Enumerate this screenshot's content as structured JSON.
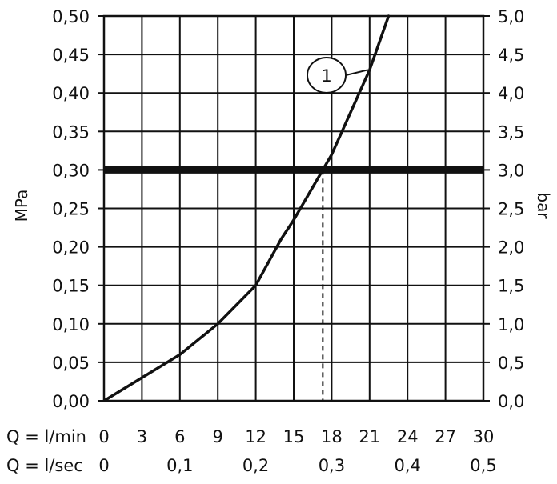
{
  "chart_data": {
    "type": "line",
    "title": "",
    "y_left": {
      "label": "MPa",
      "ticks": [
        "0,00",
        "0,05",
        "0,10",
        "0,15",
        "0,20",
        "0,25",
        "0,30",
        "0,35",
        "0,40",
        "0,45",
        "0,50"
      ],
      "range": [
        0,
        0.5
      ]
    },
    "y_right": {
      "label": "bar",
      "ticks": [
        "0,0",
        "0,5",
        "1,0",
        "1,5",
        "2,0",
        "2,5",
        "3,0",
        "3,5",
        "4,0",
        "4,5",
        "5,0"
      ],
      "range": [
        0,
        5.0
      ]
    },
    "x_lmin": {
      "label": "Q = l/min",
      "ticks": [
        "0",
        "3",
        "6",
        "9",
        "12",
        "15",
        "18",
        "21",
        "24",
        "27",
        "30"
      ],
      "range": [
        0,
        30
      ]
    },
    "x_lsec": {
      "label": "Q = l/sec",
      "ticks": [
        "0",
        "0,1",
        "0,2",
        "0,3",
        "0,4",
        "0,5"
      ],
      "range": [
        0,
        0.5
      ]
    },
    "grid": true,
    "series": [
      {
        "name": "1",
        "x": [
          0,
          3,
          6,
          9,
          12,
          14,
          15,
          17.3,
          18,
          21,
          22.5
        ],
        "y": [
          0,
          0.03,
          0.06,
          0.1,
          0.15,
          0.21,
          0.235,
          0.3,
          0.32,
          0.43,
          0.5
        ]
      }
    ],
    "reference_line": {
      "y": 0.3,
      "x_at_curve": 17.3
    },
    "callout": {
      "text": "1",
      "points_to": {
        "x": 21,
        "y": 0.43
      }
    },
    "colors": {
      "line": "#111111",
      "grid": "#111111",
      "background": "#ffffff"
    }
  }
}
